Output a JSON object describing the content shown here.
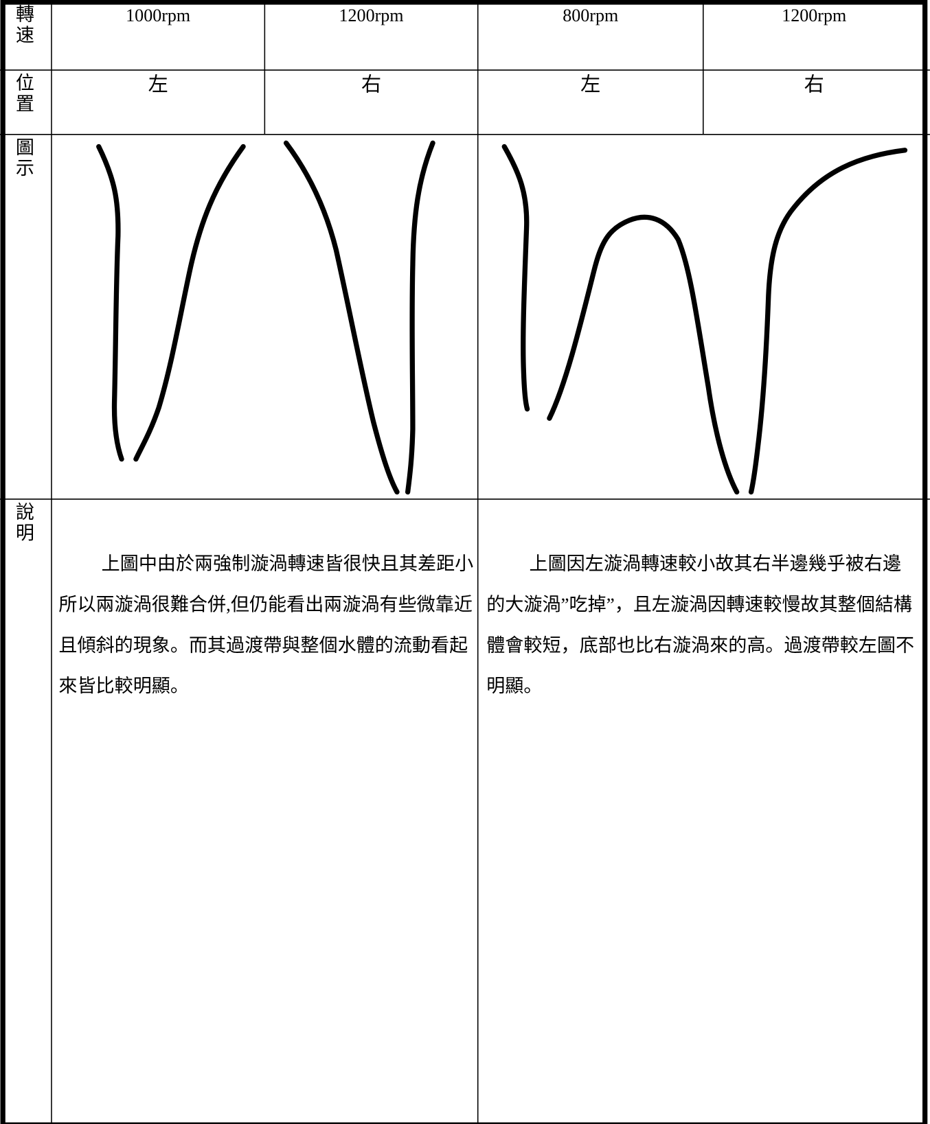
{
  "table": {
    "rows": [
      {
        "label": "轉速",
        "cells": [
          "1000rpm",
          "1200rpm",
          "800rpm",
          "1200rpm"
        ]
      },
      {
        "label": "位置",
        "cells": [
          "左",
          "右",
          "左",
          "右"
        ]
      },
      {
        "label": "圖示"
      },
      {
        "label": "說明",
        "cells": [
          "上圖中由於兩強制漩渦轉速皆很快且其差距小所以兩漩渦很難合併,但仍能看出兩漩渦有些微靠近且傾斜的現象。而其過渡帶與整個水體的流動看起來皆比較明顯。",
          "上圖因左漩渦轉速較小故其右半邊幾乎被右邊的大漩渦”吃掉”，且左漩渦因轉速較慢故其整個結構體會較短，底部也比右漩渦來的高。過渡帶較左圖不明顯。"
        ]
      }
    ]
  }
}
